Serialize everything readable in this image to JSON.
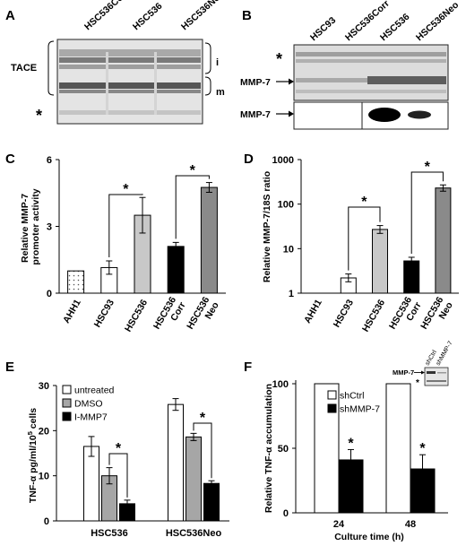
{
  "panels": {
    "A": {
      "letter": "A",
      "lanes": [
        "HSC536Corr",
        "HSC536",
        "HSC536Neo"
      ],
      "bracket_label": "TACE",
      "band_i": "i",
      "band_m": "m",
      "star": "*"
    },
    "B": {
      "letter": "B",
      "lanes": [
        "HSC93",
        "HSC536Corr",
        "HSC536",
        "HSC536Neo"
      ],
      "star": "*",
      "arrow1": "MMP-7",
      "arrow2": "MMP-7"
    },
    "F_inset": {
      "arrow": "MMP-7",
      "lanes": [
        "shCtrl",
        "shMMP-7"
      ],
      "star": "*"
    }
  },
  "chart_data": [
    {
      "letter": "C",
      "type": "bar",
      "ylabel": "Relative MMP-7 promoter activity",
      "ylabel_lines": [
        "Relative MMP-7",
        "promoter activity"
      ],
      "ylim": [
        0,
        6
      ],
      "yticks": [
        "0",
        "3",
        "6"
      ],
      "categories": [
        "AHH1",
        "HSC93",
        "HSC536",
        "HSC536 Corr",
        "HSC536 Neo"
      ],
      "category_lines": [
        [
          "AHH1"
        ],
        [
          "HSC93"
        ],
        [
          "HSC536"
        ],
        [
          "HSC536",
          "Corr"
        ],
        [
          "HSC536",
          "Neo"
        ]
      ],
      "values": [
        1.0,
        1.15,
        3.5,
        2.1,
        4.75
      ],
      "errors": [
        0,
        0.3,
        0.8,
        0.18,
        0.22
      ],
      "fills": [
        "dots",
        "#ffffff",
        "#c8c8c8",
        "#000000",
        "#8a8a8a"
      ],
      "star": "*"
    },
    {
      "letter": "D",
      "type": "bar",
      "scale": "log",
      "ylabel": "Relative MMP-7/18S ratio",
      "ylim": [
        1,
        1000
      ],
      "yticks": [
        "1",
        "10",
        "100",
        "1000"
      ],
      "categories": [
        "AHH1",
        "HSC93",
        "HSC536",
        "HSC536 Corr",
        "HSC536 Neo"
      ],
      "category_lines": [
        [
          "AHH1"
        ],
        [
          "HSC93"
        ],
        [
          "HSC536"
        ],
        [
          "HSC536",
          "Corr"
        ],
        [
          "HSC536",
          "Neo"
        ]
      ],
      "values": [
        1,
        2.2,
        27,
        5.3,
        230
      ],
      "err_low": [
        1,
        1.8,
        22,
        4.3,
        195
      ],
      "err_high": [
        1,
        2.7,
        33,
        6.4,
        270
      ],
      "fills": [
        "#ffffff",
        "#ffffff",
        "#c8c8c8",
        "#000000",
        "#8a8a8a"
      ],
      "star": "*"
    },
    {
      "letter": "E",
      "type": "bar",
      "ylabel_pre": "TNF-α pg/ml/10",
      "ylabel_sup": "5",
      "ylabel_post": " cells",
      "ylim": [
        0,
        30
      ],
      "yticks": [
        "0",
        "10",
        "20",
        "30"
      ],
      "categories": [
        "HSC536",
        "HSC536Neo"
      ],
      "series": [
        {
          "name": "untreated",
          "values": [
            16.5,
            25.8
          ],
          "errors": [
            2.2,
            1.3
          ],
          "fill": "#ffffff"
        },
        {
          "name": "DMSO",
          "values": [
            10.0,
            18.6
          ],
          "errors": [
            1.8,
            0.8
          ],
          "fill": "#a6a6a6"
        },
        {
          "name": "I-MMP7",
          "values": [
            3.8,
            8.3
          ],
          "errors": [
            0.8,
            0.6
          ],
          "fill": "#000000"
        }
      ],
      "legend_position": "top-left",
      "star": "*"
    },
    {
      "letter": "F",
      "type": "bar",
      "ylabel": "Relative TNF-α accumulation",
      "xlabel": "Culture time (h)",
      "ylim": [
        0,
        100
      ],
      "yticks": [
        "0",
        "50",
        "100"
      ],
      "categories": [
        "24",
        "48"
      ],
      "series": [
        {
          "name": "shCtrl",
          "values": [
            100,
            100
          ],
          "errors": [
            0,
            0
          ],
          "fill": "#ffffff"
        },
        {
          "name": "shMMP-7",
          "values": [
            41,
            34
          ],
          "errors": [
            8,
            11
          ],
          "fill": "#000000"
        }
      ],
      "legend_position": "top-center",
      "star": "*"
    }
  ]
}
